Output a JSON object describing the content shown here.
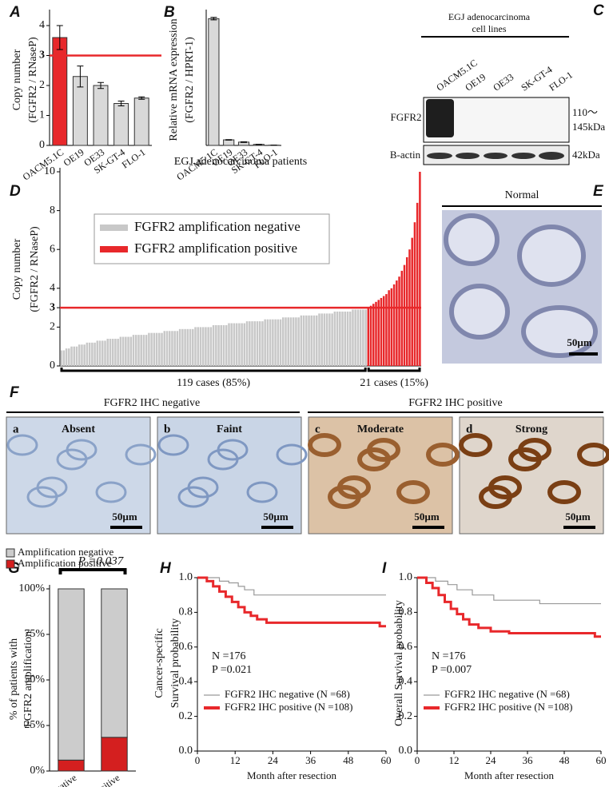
{
  "chart_data": [
    {
      "type": "bar",
      "label": "A",
      "ylabel": [
        "Copy number",
        "(FGFR2 / RNaseP)"
      ],
      "categories": [
        "OACM5.1C",
        "OE19",
        "OE33",
        "SK-GT-4",
        "FLO-1"
      ],
      "values": [
        3.6,
        2.3,
        2.0,
        1.4,
        1.58
      ],
      "errors": [
        0.4,
        0.35,
        0.1,
        0.08,
        0.04
      ],
      "colors": [
        "#e8282b",
        "#d9d9d9",
        "#d9d9d9",
        "#d9d9d9",
        "#d9d9d9"
      ],
      "threshold": 3,
      "threshold_color": "#e8282b",
      "ylim": [
        0,
        4.4
      ],
      "yticks": [
        0,
        1,
        2,
        3,
        4
      ]
    },
    {
      "type": "bar",
      "label": "B",
      "ylabel": [
        "Relative mRNA expression",
        "(FGFR2 / HPRT-1)"
      ],
      "categories": [
        "OACM5.1C",
        "OE19",
        "OE33",
        "SK-GT-4",
        "FLO-1"
      ],
      "values": [
        5.0,
        0.22,
        0.13,
        0.04,
        0.01
      ],
      "errors": [
        0.05,
        0.01,
        0.01,
        0.005,
        0.003
      ],
      "colors": [
        "#d9d9d9",
        "#d9d9d9",
        "#d9d9d9",
        "#d9d9d9",
        "#d9d9d9"
      ],
      "ylim": [
        0,
        5.2
      ]
    },
    {
      "type": "bar",
      "label": "D",
      "title": "EGJ adenocarcinoma patients",
      "ylabel": [
        "Copy number",
        "(FGFR2 / RNaseP)"
      ],
      "threshold": 3,
      "threshold_color": "#e8282b",
      "ylim": [
        0,
        10
      ],
      "yticks": [
        0,
        2,
        3,
        4,
        6,
        8,
        10
      ],
      "annotations": [
        "119 cases (85%)",
        "21 cases (15%)"
      ],
      "series": [
        {
          "name": "FGFR2 amplification negative",
          "color": "#c8c8c8",
          "values": [
            0.8,
            0.8,
            0.9,
            0.9,
            1.0,
            1.0,
            1.0,
            1.1,
            1.1,
            1.1,
            1.2,
            1.2,
            1.2,
            1.2,
            1.3,
            1.3,
            1.3,
            1.3,
            1.4,
            1.4,
            1.4,
            1.4,
            1.4,
            1.5,
            1.5,
            1.5,
            1.5,
            1.5,
            1.6,
            1.6,
            1.6,
            1.6,
            1.6,
            1.6,
            1.7,
            1.7,
            1.7,
            1.7,
            1.7,
            1.7,
            1.8,
            1.8,
            1.8,
            1.8,
            1.8,
            1.8,
            1.9,
            1.9,
            1.9,
            1.9,
            1.9,
            1.9,
            2.0,
            2.0,
            2.0,
            2.0,
            2.0,
            2.0,
            2.0,
            2.1,
            2.1,
            2.1,
            2.1,
            2.1,
            2.1,
            2.2,
            2.2,
            2.2,
            2.2,
            2.2,
            2.2,
            2.2,
            2.3,
            2.3,
            2.3,
            2.3,
            2.3,
            2.3,
            2.3,
            2.4,
            2.4,
            2.4,
            2.4,
            2.4,
            2.4,
            2.4,
            2.5,
            2.5,
            2.5,
            2.5,
            2.5,
            2.5,
            2.5,
            2.6,
            2.6,
            2.6,
            2.6,
            2.6,
            2.6,
            2.6,
            2.7,
            2.7,
            2.7,
            2.7,
            2.7,
            2.7,
            2.8,
            2.8,
            2.8,
            2.8,
            2.8,
            2.8,
            2.8,
            2.9,
            2.9,
            2.9,
            2.9,
            2.9,
            2.9
          ]
        },
        {
          "name": "FGFR2 amplification positive",
          "color": "#e8282b",
          "values": [
            3.0,
            3.1,
            3.2,
            3.3,
            3.4,
            3.5,
            3.6,
            3.7,
            3.9,
            4.0,
            4.2,
            4.4,
            4.6,
            4.9,
            5.2,
            5.6,
            6.0,
            6.6,
            7.4,
            8.4,
            10.0
          ]
        }
      ]
    },
    {
      "type": "stacked",
      "label": "G",
      "ylabel": [
        "% of  patients with",
        "FGFR2  amplification"
      ],
      "categories": [
        "IHC negative",
        "IHC positive"
      ],
      "annotation": "P =0.037",
      "ylim": [
        0,
        100
      ],
      "yticks": [
        {
          "value": 0,
          "label": "0%"
        },
        {
          "value": 25,
          "label": "25%"
        },
        {
          "value": 50,
          "label": "50%"
        },
        {
          "value": 75,
          "label": "75%"
        },
        {
          "value": 100,
          "label": "100%"
        }
      ],
      "series": [
        {
          "name": "Amplification negative",
          "color": "#cccccc",
          "values": [
            94,
            81.5
          ]
        },
        {
          "name": "Amplification positive",
          "color": "#d41f1f",
          "values": [
            6,
            18.5
          ]
        }
      ]
    },
    {
      "type": "km",
      "label": "H",
      "ylabel": [
        "Cancer-specific",
        "Survival probability"
      ],
      "xlabel": "Month after resection",
      "annotations": [
        "N =176",
        "P =0.021"
      ],
      "xlim": [
        0,
        60
      ],
      "xticks": [
        0,
        12,
        24,
        36,
        48,
        60
      ],
      "ylim": [
        0,
        1
      ],
      "yticks": [
        {
          "value": 0,
          "label": "0.0"
        },
        0.2,
        0.4,
        0.6,
        0.8,
        {
          "value": 1,
          "label": "1.0"
        }
      ],
      "series": [
        {
          "name": "FGFR2 IHC negative (N =68)",
          "color": "#999999",
          "x": [
            0,
            7,
            10,
            13,
            15,
            18,
            60
          ],
          "values": [
            1.0,
            0.98,
            0.97,
            0.95,
            0.93,
            0.9,
            0.9
          ]
        },
        {
          "name": "FGFR2 IHC positive (N =108)",
          "color": "#e8282b",
          "x": [
            0,
            3,
            5,
            7,
            9,
            11,
            13,
            15,
            17,
            19,
            22,
            57,
            58,
            60
          ],
          "values": [
            1.0,
            0.98,
            0.95,
            0.92,
            0.89,
            0.86,
            0.83,
            0.8,
            0.78,
            0.76,
            0.74,
            0.74,
            0.72,
            0.72
          ]
        }
      ]
    },
    {
      "type": "km",
      "label": "I",
      "ylabel": [
        "Overall Survival probability"
      ],
      "xlabel": "Month after resection",
      "annotations": [
        "N =176",
        "P =0.007"
      ],
      "xlim": [
        0,
        60
      ],
      "xticks": [
        0,
        12,
        24,
        36,
        48,
        60
      ],
      "ylim": [
        0,
        1
      ],
      "yticks": [
        {
          "value": 0,
          "label": "0.0"
        },
        0.2,
        0.4,
        0.6,
        0.8,
        {
          "value": 1,
          "label": "1.0"
        }
      ],
      "series": [
        {
          "name": "FGFR2 IHC negative (N =68)",
          "color": "#999999",
          "x": [
            0,
            6,
            10,
            13,
            18,
            25,
            40,
            60
          ],
          "values": [
            1.0,
            0.98,
            0.96,
            0.93,
            0.9,
            0.87,
            0.85,
            0.85
          ]
        },
        {
          "name": "FGFR2 IHC positive (N =108)",
          "color": "#e8282b",
          "x": [
            0,
            3,
            5,
            7,
            9,
            11,
            13,
            15,
            17,
            20,
            24,
            30,
            57,
            58,
            60
          ],
          "values": [
            1.0,
            0.97,
            0.94,
            0.9,
            0.86,
            0.82,
            0.79,
            0.76,
            0.73,
            0.71,
            0.69,
            0.68,
            0.68,
            0.66,
            0.66
          ]
        }
      ]
    }
  ],
  "panels": {
    "C": {
      "label": "C",
      "title": [
        "EGJ adenocarcinoma",
        "cell lines"
      ],
      "lanes": [
        "OACM5.1C",
        "OE19",
        "OE33",
        "SK-GT-4",
        "FLO-1"
      ],
      "protein": "FGFR2",
      "size": [
        "110～",
        "145kDa"
      ],
      "control": "B-actin",
      "control_size": "42kDa"
    },
    "E": {
      "label": "E",
      "title": "Normal",
      "scale": "50µm"
    },
    "F": {
      "label": "F",
      "negative": "FGFR2 IHC negative",
      "positive": "FGFR2 IHC positive",
      "images": [
        {
          "letter": "a",
          "title": "Absent",
          "scale": "50µm"
        },
        {
          "letter": "b",
          "title": "Faint",
          "scale": "50µm"
        },
        {
          "letter": "c",
          "title": "Moderate",
          "scale": "50µm"
        },
        {
          "letter": "d",
          "title": "Strong",
          "scale": "50µm"
        }
      ]
    }
  }
}
